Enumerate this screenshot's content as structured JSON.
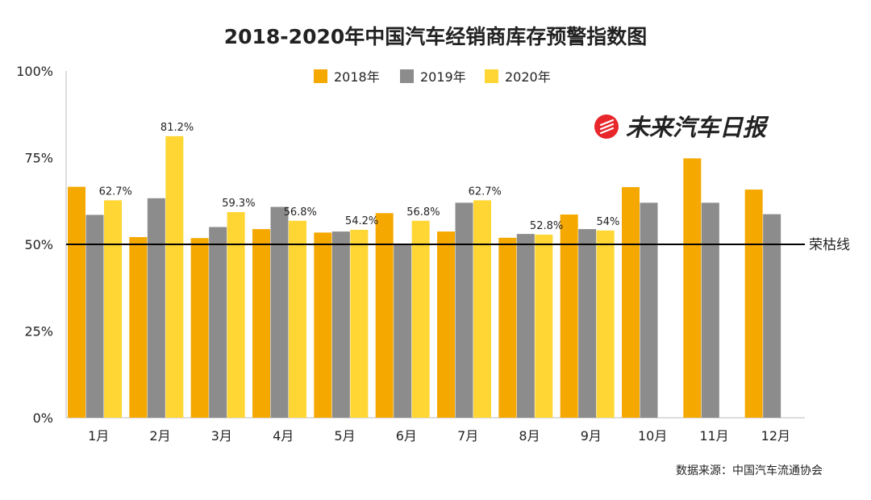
{
  "chart_data": {
    "type": "bar",
    "title": "2018-2020年中国汽车经销商库存预警指数图",
    "categories": [
      "1月",
      "2月",
      "3月",
      "4月",
      "5月",
      "6月",
      "7月",
      "8月",
      "9月",
      "10月",
      "11月",
      "12月"
    ],
    "series": [
      {
        "name": "2018年",
        "color": "#F5A800",
        "values": [
          66.6,
          52.1,
          51.8,
          54.4,
          53.4,
          59.0,
          53.7,
          51.9,
          58.6,
          66.5,
          74.8,
          65.8
        ]
      },
      {
        "name": "2019年",
        "color": "#8C8C8C",
        "values": [
          58.5,
          63.3,
          55.0,
          60.8,
          53.7,
          50.0,
          62.0,
          53.0,
          54.4,
          62.0,
          62.0,
          58.7
        ]
      },
      {
        "name": "2020年",
        "color": "#FFD633",
        "values": [
          62.7,
          81.2,
          59.3,
          56.8,
          54.2,
          56.8,
          62.7,
          52.8,
          54.0,
          null,
          null,
          null
        ]
      }
    ],
    "data_labels": {
      "2020年": [
        "62.7%",
        "81.2%",
        "59.3%",
        "56.8%",
        "54.2%",
        "56.8%",
        "62.7%",
        "52.8%",
        "54%",
        null,
        null,
        null
      ]
    },
    "ylim": [
      0,
      100
    ],
    "yticks": [
      0,
      25,
      50,
      75,
      100
    ],
    "ytick_labels": [
      "0%",
      "25%",
      "50%",
      "75%",
      "100%"
    ],
    "legend_position": "top-center",
    "reference_line": {
      "value": 50,
      "label": "荣枯线"
    },
    "source": "数据来源：中国汽车流通协会",
    "brand": "未来汽车日报"
  },
  "colors": {
    "axis": "#bbbbbb",
    "ref_line": "#000000",
    "brand_red": "#E8262B"
  }
}
